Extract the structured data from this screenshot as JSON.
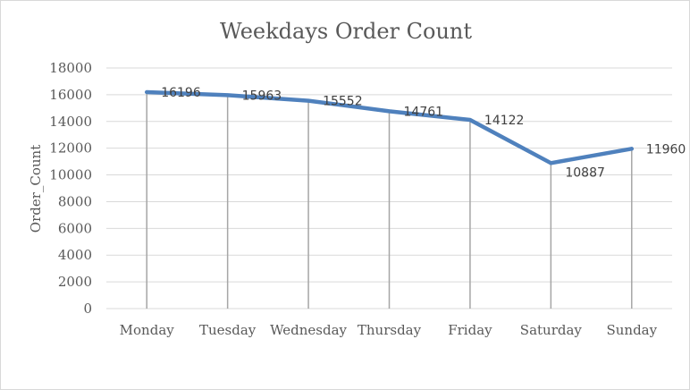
{
  "chart_data": {
    "type": "line",
    "title": "Weekdays Order Count",
    "xlabel": "",
    "ylabel": "Order_Count",
    "categories": [
      "Monday",
      "Tuesday",
      "Wednesday",
      "Thursday",
      "Friday",
      "Saturday",
      "Sunday"
    ],
    "series": [
      {
        "values": [
          16196,
          15963,
          15552,
          14761,
          14122,
          10887,
          11960
        ],
        "color": "#4f81bd"
      }
    ],
    "data_labels": [
      "16196",
      "15963",
      "15552",
      "14761",
      "14122",
      "10887",
      "11960"
    ],
    "yticks": [
      "0",
      "2000",
      "4000",
      "6000",
      "8000",
      "10000",
      "12000",
      "14000",
      "16000",
      "18000"
    ],
    "ylim": [
      0,
      18000
    ],
    "grid": true,
    "drop_lines": true,
    "legend": "none"
  }
}
